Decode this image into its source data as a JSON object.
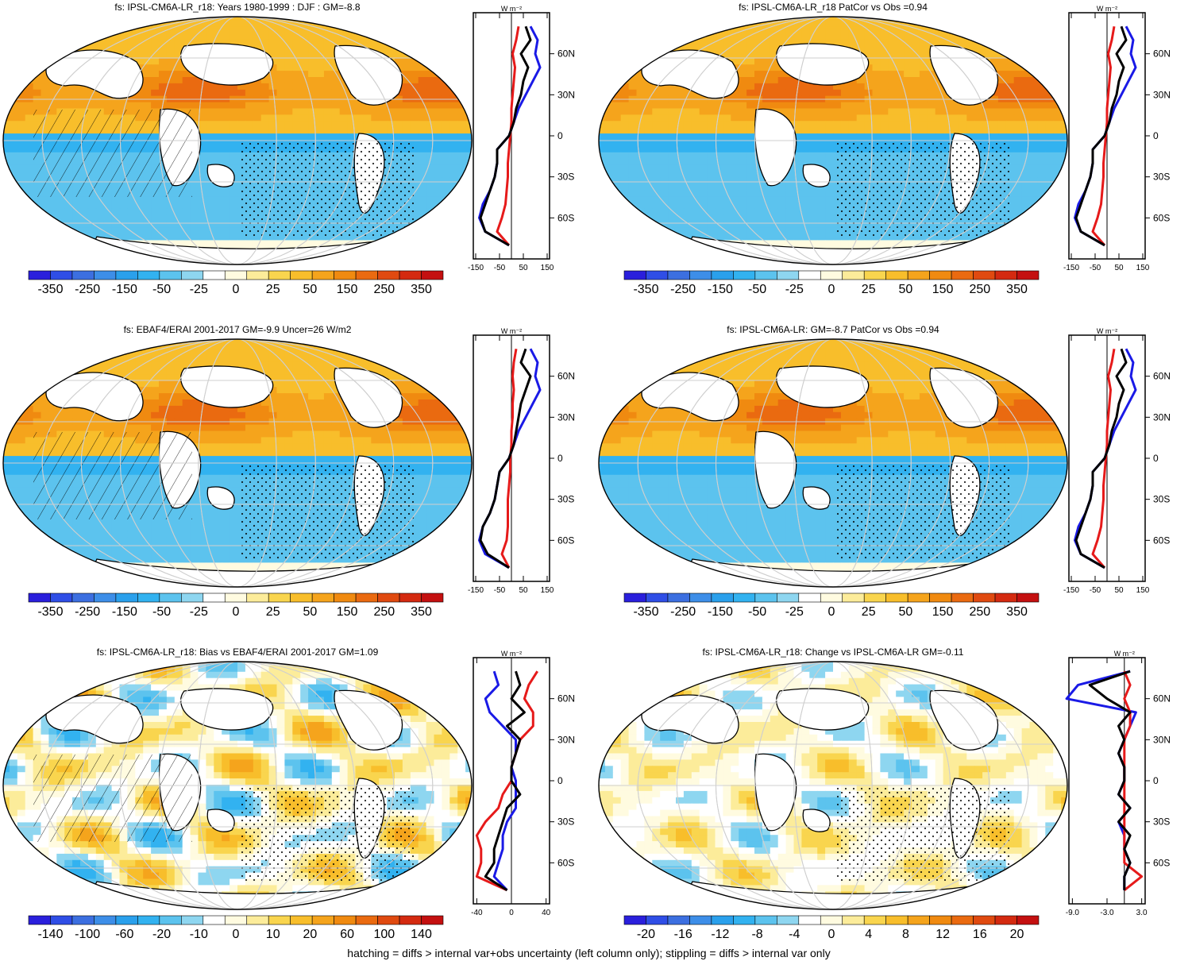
{
  "footnote": "hatching = diffs > internal var+obs uncertainty (left column only); stippling = diffs > internal var only",
  "colors": {
    "colorbar": [
      "#2a1fdc",
      "#2f4ee6",
      "#3c6fe0",
      "#3d8ee8",
      "#2aa0ec",
      "#32b2f0",
      "#5cc3ee",
      "#8ed6f0",
      "#ffffff",
      "#fffbe0",
      "#fcec9a",
      "#f9d54e",
      "#f8be2b",
      "#f5a41c",
      "#f08a10",
      "#ea6a10",
      "#e04a10",
      "#d42a10",
      "#c41010"
    ],
    "profile_model": "#000000",
    "profile_obs_a": "#1a1ae6",
    "profile_obs_b": "#e61a1a"
  },
  "lat_labels": [
    "60N",
    "30N",
    "0",
    "30S",
    "60S"
  ],
  "panels": [
    {
      "id": "top-left",
      "title": "fs: IPSL-CM6A-LR_r18: Years 1980-1999 : DJF : GM=-8.8",
      "colorbar_labels": [
        "-350",
        "-250",
        "-150",
        "-50",
        "-25",
        "0",
        "25",
        "50",
        "150",
        "250",
        "350"
      ],
      "profile_ticks": [
        "-150",
        "-50",
        "50",
        "150"
      ],
      "profile_unit": "W m⁻²",
      "hatching": true
    },
    {
      "id": "top-right",
      "title": "fs: IPSL-CM6A-LR_r18 PatCor vs Obs =0.94",
      "colorbar_labels": [
        "-350",
        "-250",
        "-150",
        "-50",
        "-25",
        "0",
        "25",
        "50",
        "150",
        "250",
        "350"
      ],
      "profile_ticks": [
        "-150",
        "-50",
        "50",
        "150"
      ],
      "profile_unit": "W m⁻²",
      "hatching": false
    },
    {
      "id": "mid-left",
      "title": "fs: EBAF4/ERAI 2001-2017 GM=-9.9 Uncer=26 W/m2",
      "colorbar_labels": [
        "-350",
        "-250",
        "-150",
        "-50",
        "-25",
        "0",
        "25",
        "50",
        "150",
        "250",
        "350"
      ],
      "profile_ticks": [
        "-150",
        "-50",
        "50",
        "150"
      ],
      "profile_unit": "W m⁻²",
      "hatching": true
    },
    {
      "id": "mid-right",
      "title": "fs: IPSL-CM6A-LR: GM=-8.7 PatCor vs Obs =0.94",
      "colorbar_labels": [
        "-350",
        "-250",
        "-150",
        "-50",
        "-25",
        "0",
        "25",
        "50",
        "150",
        "250",
        "350"
      ],
      "profile_ticks": [
        "-150",
        "-50",
        "50",
        "150"
      ],
      "profile_unit": "W m⁻²",
      "hatching": false
    },
    {
      "id": "bottom-left",
      "title": "fs: IPSL-CM6A-LR_r18: Bias vs EBAF4/ERAI 2001-2017 GM=1.09",
      "colorbar_labels": [
        "-140",
        "-100",
        "-60",
        "-20",
        "-10",
        "0",
        "10",
        "20",
        "60",
        "100",
        "140"
      ],
      "profile_ticks": [
        "-40",
        "0",
        "40"
      ],
      "profile_unit": "W m⁻²",
      "hatching": true
    },
    {
      "id": "bottom-right",
      "title": "fs: IPSL-CM6A-LR_r18: Change vs IPSL-CM6A-LR GM=-0.11",
      "colorbar_labels": [
        "-20",
        "-16",
        "-12",
        "-8",
        "-4",
        "0",
        "4",
        "8",
        "12",
        "16",
        "20"
      ],
      "profile_ticks": [
        "-9.0",
        "-3.0",
        "3.0"
      ],
      "profile_unit": "W m⁻²",
      "hatching": false
    }
  ],
  "chart_data": [
    {
      "type": "heatmap",
      "title": "fs: IPSL-CM6A-LR_r18: Years 1980-1999 : DJF : GM=-8.8",
      "colorbar_ticks": [
        -350,
        -250,
        -150,
        -50,
        -25,
        0,
        25,
        50,
        150,
        250,
        350
      ],
      "profile": {
        "ylabels": [
          "60N",
          "30N",
          "0",
          "30S",
          "60S"
        ],
        "xticks": [
          -150,
          -50,
          50,
          150
        ],
        "lat": [
          80,
          70,
          60,
          50,
          40,
          30,
          20,
          10,
          0,
          -10,
          -20,
          -30,
          -40,
          -50,
          -60,
          -70,
          -80
        ],
        "model": [
          60,
          80,
          40,
          70,
          50,
          40,
          20,
          10,
          -10,
          -60,
          -60,
          -70,
          -90,
          -110,
          -130,
          -110,
          -10
        ],
        "obs_a": [
          80,
          110,
          100,
          120,
          90,
          60,
          30,
          10,
          -10,
          -60,
          -60,
          -70,
          -90,
          -120,
          -135,
          -110,
          -10
        ],
        "obs_b": [
          30,
          20,
          5,
          15,
          10,
          5,
          0,
          0,
          -5,
          -10,
          -15,
          -15,
          -20,
          -25,
          -40,
          -60,
          -10
        ]
      }
    },
    {
      "type": "heatmap",
      "title": "fs: IPSL-CM6A-LR_r18 PatCor vs Obs =0.94",
      "colorbar_ticks": [
        -350,
        -250,
        -150,
        -50,
        -25,
        0,
        25,
        50,
        150,
        250,
        350
      ],
      "profile": {
        "ylabels": [
          "60N",
          "30N",
          "0",
          "30S",
          "60S"
        ],
        "xticks": [
          -150,
          -50,
          50,
          150
        ],
        "lat": [
          80,
          70,
          60,
          50,
          40,
          30,
          20,
          10,
          0,
          -10,
          -20,
          -30,
          -40,
          -50,
          -60,
          -70,
          -80
        ],
        "model": [
          60,
          80,
          40,
          70,
          50,
          40,
          20,
          10,
          -10,
          -60,
          -60,
          -70,
          -90,
          -110,
          -130,
          -110,
          -10
        ],
        "obs_a": [
          80,
          110,
          100,
          120,
          90,
          60,
          30,
          10,
          -10,
          -60,
          -60,
          -70,
          -90,
          -120,
          -135,
          -110,
          -10
        ],
        "obs_b": [
          30,
          20,
          5,
          15,
          10,
          5,
          0,
          0,
          -5,
          -10,
          -15,
          -15,
          -20,
          -25,
          -40,
          -60,
          -10
        ]
      }
    },
    {
      "type": "heatmap",
      "title": "fs: EBAF4/ERAI 2001-2017 GM=-9.9 Uncer=26 W/m2",
      "colorbar_ticks": [
        -350,
        -250,
        -150,
        -50,
        -25,
        0,
        25,
        50,
        150,
        250,
        350
      ],
      "profile": {
        "ylabels": [
          "60N",
          "30N",
          "0",
          "30S",
          "60S"
        ],
        "xticks": [
          -150,
          -50,
          50,
          150
        ],
        "lat": [
          80,
          70,
          60,
          50,
          40,
          30,
          20,
          10,
          0,
          -10,
          -20,
          -30,
          -40,
          -50,
          -60,
          -70,
          -80
        ],
        "model": [
          60,
          40,
          80,
          60,
          40,
          30,
          20,
          10,
          -10,
          -50,
          -60,
          -70,
          -90,
          -120,
          -130,
          -100,
          -10
        ],
        "obs_a": [
          80,
          110,
          100,
          120,
          90,
          60,
          30,
          10,
          -10,
          -50,
          -60,
          -70,
          -90,
          -120,
          -135,
          -110,
          -10
        ],
        "obs_b": [
          20,
          10,
          5,
          10,
          5,
          5,
          0,
          0,
          -5,
          -5,
          -10,
          -15,
          -15,
          -15,
          -20,
          -40,
          -10
        ]
      }
    },
    {
      "type": "heatmap",
      "title": "fs: IPSL-CM6A-LR: GM=-8.7 PatCor vs Obs =0.94",
      "colorbar_ticks": [
        -350,
        -250,
        -150,
        -50,
        -25,
        0,
        25,
        50,
        150,
        250,
        350
      ],
      "profile": {
        "ylabels": [
          "60N",
          "30N",
          "0",
          "30S",
          "60S"
        ],
        "xticks": [
          -150,
          -50,
          50,
          150
        ],
        "lat": [
          80,
          70,
          60,
          50,
          40,
          30,
          20,
          10,
          0,
          -10,
          -20,
          -30,
          -40,
          -50,
          -60,
          -70,
          -80
        ],
        "model": [
          60,
          80,
          40,
          70,
          50,
          40,
          20,
          10,
          -10,
          -60,
          -60,
          -70,
          -90,
          -110,
          -130,
          -110,
          -10
        ],
        "obs_a": [
          80,
          110,
          100,
          120,
          90,
          60,
          30,
          10,
          -10,
          -60,
          -60,
          -70,
          -90,
          -120,
          -135,
          -110,
          -10
        ],
        "obs_b": [
          30,
          20,
          5,
          15,
          10,
          5,
          0,
          0,
          -5,
          -10,
          -15,
          -15,
          -20,
          -25,
          -40,
          -60,
          -10
        ]
      }
    },
    {
      "type": "heatmap",
      "title": "fs: IPSL-CM6A-LR_r18: Bias vs EBAF4/ERAI 2001-2017 GM=1.09",
      "colorbar_ticks": [
        -140,
        -100,
        -60,
        -20,
        -10,
        0,
        10,
        20,
        60,
        100,
        140
      ],
      "profile": {
        "ylabels": [
          "60N",
          "30N",
          "0",
          "30S",
          "60S"
        ],
        "xticks": [
          -40,
          0,
          40
        ],
        "lat": [
          80,
          70,
          60,
          50,
          40,
          30,
          20,
          10,
          0,
          -10,
          -20,
          -30,
          -40,
          -50,
          -60,
          -70,
          -80
        ],
        "model": [
          5,
          10,
          0,
          15,
          -5,
          10,
          5,
          0,
          0,
          10,
          -5,
          -10,
          -15,
          -20,
          -20,
          -30,
          -5
        ],
        "obs_a": [
          -20,
          -15,
          -30,
          -25,
          -10,
          5,
          5,
          0,
          5,
          5,
          5,
          -5,
          -10,
          -10,
          -15,
          -20,
          -5
        ],
        "obs_b": [
          30,
          20,
          15,
          25,
          25,
          10,
          5,
          0,
          0,
          -10,
          -15,
          -30,
          -40,
          -35,
          -35,
          -40,
          -5
        ]
      }
    },
    {
      "type": "heatmap",
      "title": "fs: IPSL-CM6A-LR_r18: Change vs IPSL-CM6A-LR GM=-0.11",
      "colorbar_ticks": [
        -20,
        -16,
        -12,
        -8,
        -4,
        0,
        4,
        8,
        12,
        16,
        20
      ],
      "profile": {
        "ylabels": [
          "60N",
          "30N",
          "0",
          "30S",
          "60S"
        ],
        "xticks": [
          -9.0,
          -3.0,
          3.0
        ],
        "lat": [
          80,
          70,
          60,
          50,
          40,
          30,
          20,
          10,
          0,
          -10,
          -20,
          -30,
          -40,
          -50,
          -60,
          -70,
          -80
        ],
        "model": [
          1,
          -6,
          -3,
          1,
          -1,
          0,
          -1,
          0,
          0,
          -1,
          1,
          -1,
          1,
          0,
          1,
          0,
          0
        ],
        "obs_a": [
          1,
          -8,
          -10,
          2,
          1,
          0,
          -1,
          0,
          0,
          -1,
          1,
          -1,
          0,
          0,
          1,
          0,
          0
        ],
        "obs_b": [
          0,
          1,
          0,
          1,
          1,
          0,
          0,
          0,
          0,
          0,
          0,
          0,
          0,
          0,
          0,
          3,
          0
        ]
      }
    }
  ]
}
